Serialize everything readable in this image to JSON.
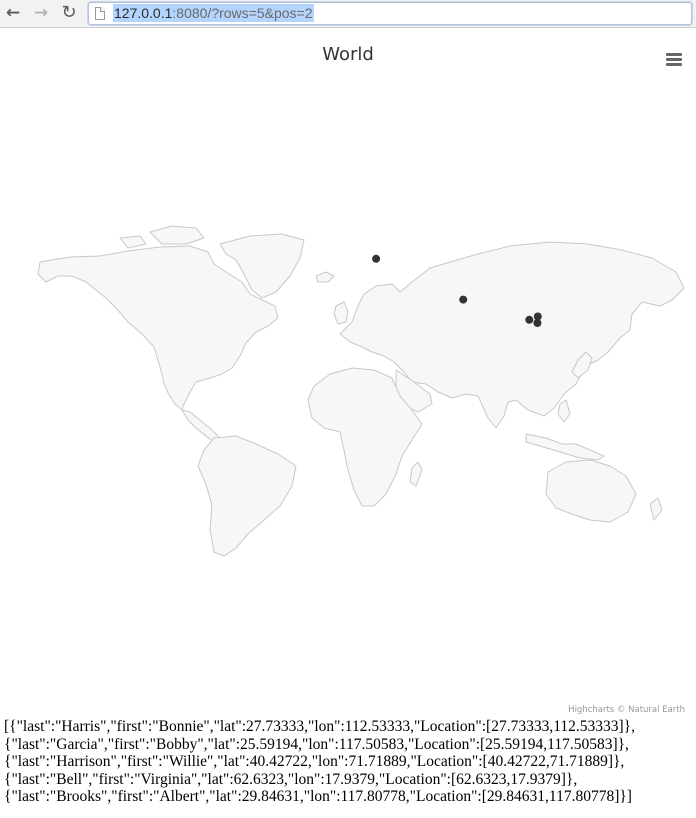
{
  "browser": {
    "url_host": "127.0.0.1",
    "url_rest": ":8080/?rows=5&pos=2",
    "back_icon": "arrow-left-icon",
    "forward_icon": "arrow-right-icon",
    "reload_icon": "reload-icon"
  },
  "chart": {
    "title": "World",
    "menu_icon": "hamburger-menu-icon",
    "credits": "Highcharts © Natural Earth",
    "colors": {
      "land_fill": "#f7f7f7",
      "land_border": "#c8c8c8",
      "point": "#333333",
      "title": "#333333",
      "credits": "#999999"
    }
  },
  "chart_data": {
    "type": "scatter",
    "title": "World",
    "points": [
      {
        "last": "Harris",
        "first": "Bonnie",
        "lat": 27.73333,
        "lon": 112.53333
      },
      {
        "last": "Garcia",
        "first": "Bobby",
        "lat": 25.59194,
        "lon": 117.50583
      },
      {
        "last": "Harrison",
        "first": "Willie",
        "lat": 40.42722,
        "lon": 71.71889
      },
      {
        "last": "Bell",
        "first": "Virginia",
        "lat": 62.6323,
        "lon": 17.9379
      },
      {
        "last": "Brooks",
        "first": "Albert",
        "lat": 29.84631,
        "lon": 117.80778
      }
    ]
  },
  "json_lines": [
    "[{\"last\":\"Harris\",\"first\":\"Bonnie\",\"lat\":27.73333,\"lon\":112.53333,\"Location\":[27.73333,112.53333]},",
    "{\"last\":\"Garcia\",\"first\":\"Bobby\",\"lat\":25.59194,\"lon\":117.50583,\"Location\":[25.59194,117.50583]},",
    "{\"last\":\"Harrison\",\"first\":\"Willie\",\"lat\":40.42722,\"lon\":71.71889,\"Location\":[40.42722,71.71889]},",
    "{\"last\":\"Bell\",\"first\":\"Virginia\",\"lat\":62.6323,\"lon\":17.9379,\"Location\":[62.6323,17.9379]},",
    "{\"last\":\"Brooks\",\"first\":\"Albert\",\"lat\":29.84631,\"lon\":117.80778,\"Location\":[29.84631,117.80778]}]"
  ]
}
